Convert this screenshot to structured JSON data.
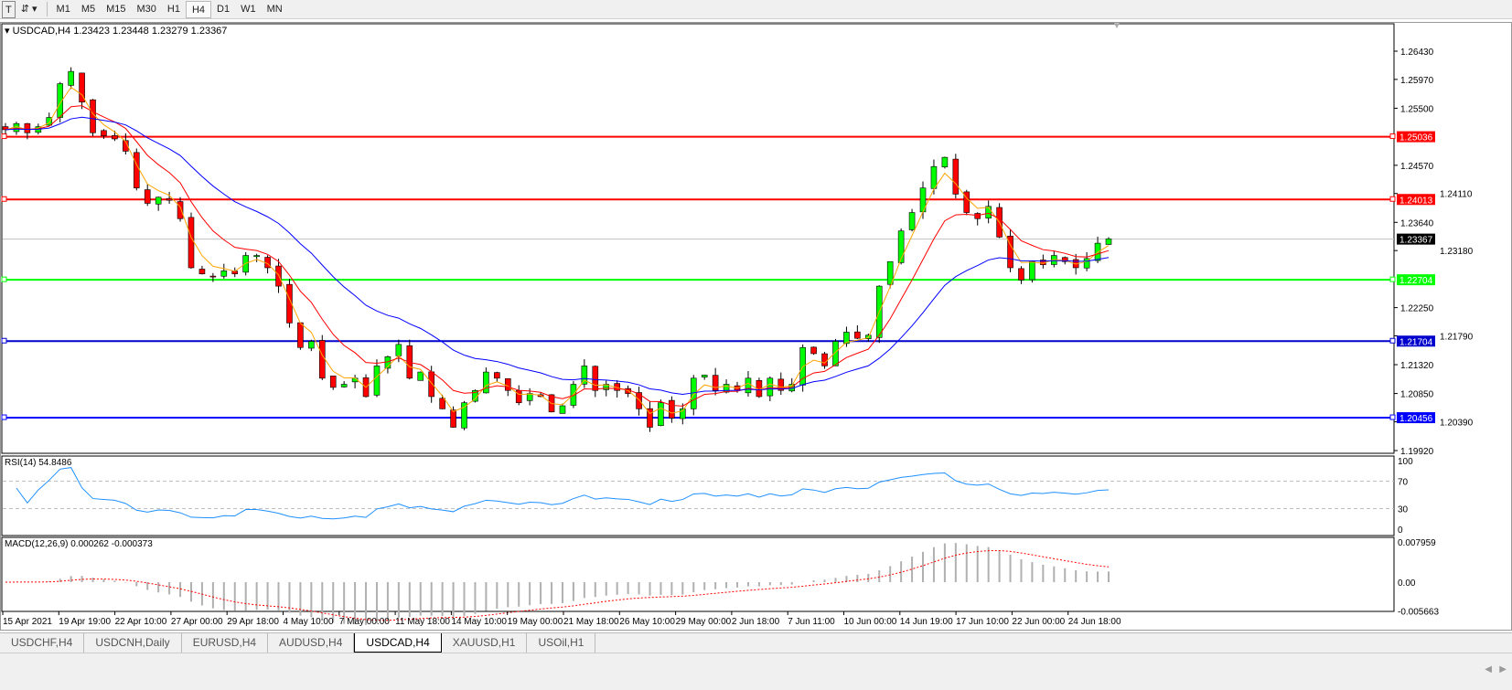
{
  "toolbar": {
    "text_tool": "T",
    "timeframes": [
      "M1",
      "M5",
      "M15",
      "M30",
      "H1",
      "H4",
      "D1",
      "W1",
      "MN"
    ],
    "active": "H4"
  },
  "chart": {
    "header": "USDCAD,H4  1.23423 1.23448 1.23279 1.23367",
    "price_ticks": [
      "1.26430",
      "1.25970",
      "1.25500",
      "1.24570",
      "1.24110",
      "1.23640",
      "1.23180",
      "1.22250",
      "1.21790",
      "1.21320",
      "1.20850",
      "1.20390",
      "1.19920"
    ],
    "levels": [
      {
        "price": "1.25036",
        "color": "#ff0000"
      },
      {
        "price": "1.24013",
        "color": "#ff0000"
      },
      {
        "price": "1.22704",
        "color": "#00ff00"
      },
      {
        "price": "1.21704",
        "color": "#0000cd"
      },
      {
        "price": "1.20456",
        "color": "#0000ff"
      }
    ],
    "current_price": "1.23367",
    "closes": [
      1.2515,
      1.2525,
      1.251,
      1.252,
      1.2535,
      1.259,
      1.261,
      1.256,
      1.251,
      1.2505,
      1.25,
      1.248,
      1.242,
      1.2395,
      1.2405,
      1.24,
      1.237,
      1.229,
      1.228,
      1.2275,
      1.2285,
      1.228,
      1.231,
      1.231,
      1.229,
      1.226,
      1.22,
      1.216,
      1.217,
      1.211,
      1.2095,
      1.21,
      1.211,
      1.208,
      1.213,
      1.2145,
      1.2165,
      1.211,
      1.212,
      1.208,
      1.206,
      1.203,
      1.207,
      1.209,
      1.212,
      1.211,
      1.209,
      1.207,
      1.2085,
      1.208,
      1.2055,
      1.2065,
      1.21,
      1.213,
      1.209,
      1.21,
      1.209,
      1.2085,
      1.206,
      1.203,
      1.207,
      1.2045,
      1.206,
      1.211,
      1.2115,
      1.209,
      1.21,
      1.209,
      1.211,
      1.208,
      1.211,
      1.209,
      1.21,
      1.216,
      1.215,
      1.213,
      1.217,
      1.2185,
      1.2175,
      1.218,
      1.226,
      1.23,
      1.235,
      1.238,
      1.242,
      1.2455,
      1.247,
      1.241,
      1.238,
      1.237,
      1.239,
      1.234,
      1.229,
      1.227,
      1.23,
      1.2295,
      1.231,
      1.23,
      1.229,
      1.2305,
      1.233,
      1.2337
    ],
    "ma_colors": {
      "fast": "#ffa500",
      "mid": "#ff0000",
      "slow": "#0000ff"
    },
    "bull_color": "#00ff00",
    "bear_color": "#ff0000"
  },
  "rsi": {
    "label": "RSI(14) 54.8486",
    "ticks": [
      "100",
      "70",
      "30",
      "0"
    ],
    "color": "#1e90ff"
  },
  "macd": {
    "label": "MACD(12,26,9) 0.000262 -0.000373",
    "ticks": [
      "0.007959",
      "0.00",
      "-0.005663"
    ]
  },
  "dates": [
    "15 Apr 2021",
    "19 Apr 19:00",
    "22 Apr 10:00",
    "27 Apr 00:00",
    "29 Apr 18:00",
    "4 May 10:00",
    "7 May 00:00",
    "11 May 18:00",
    "14 May 10:00",
    "19 May 00:00",
    "21 May 18:00",
    "26 May 10:00",
    "29 May 00:00",
    "2 Jun 18:00",
    "7 Jun 11:00",
    "10 Jun 00:00",
    "14 Jun 19:00",
    "17 Jun 10:00",
    "22 Jun 00:00",
    "24 Jun 18:00"
  ],
  "tabs": [
    {
      "label": "USDCHF,H4"
    },
    {
      "label": "USDCNH,Daily"
    },
    {
      "label": "EURUSD,H4"
    },
    {
      "label": "AUDUSD,H4"
    },
    {
      "label": "USDCAD,H4",
      "active": true
    },
    {
      "label": "XAUUSD,H1"
    },
    {
      "label": "USOil,H1"
    }
  ]
}
